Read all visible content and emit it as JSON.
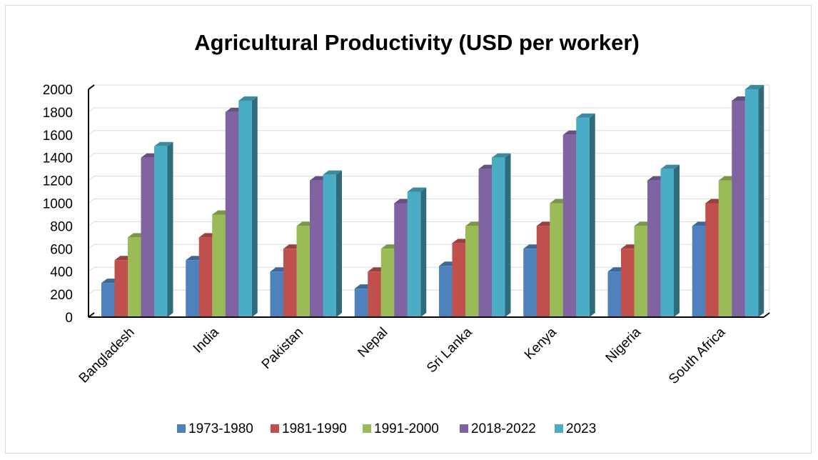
{
  "chart_data": {
    "type": "bar",
    "title": "Agricultural Productivity (USD per worker)",
    "xlabel": "",
    "ylabel": "",
    "ylim": [
      0,
      2000
    ],
    "yticks": [
      "0",
      "200",
      "400",
      "600",
      "800",
      "1000",
      "1200",
      "1400",
      "1600",
      "1800",
      "2000"
    ],
    "grid": true,
    "legend_position": "bottom",
    "categories": [
      "Bangladesh",
      "India",
      "Pakistan",
      "Nepal",
      "Sri Lanka",
      "Kenya",
      "Nigeria",
      "South Africa"
    ],
    "series": [
      {
        "name": "1973-1980",
        "color": "#4f81bd",
        "values": [
          300,
          500,
          400,
          250,
          450,
          600,
          400,
          800
        ]
      },
      {
        "name": "1981-1990",
        "color": "#c0504d",
        "values": [
          500,
          700,
          600,
          400,
          650,
          800,
          600,
          1000
        ]
      },
      {
        "name": "1991-2000",
        "color": "#9bbb59",
        "values": [
          700,
          900,
          800,
          600,
          800,
          1000,
          800,
          1200
        ]
      },
      {
        "name": "2018-2022",
        "color": "#8064a2",
        "values": [
          1400,
          1800,
          1200,
          1000,
          1300,
          1600,
          1200,
          1900
        ]
      },
      {
        "name": "2023",
        "color": "#4bacc6",
        "values": [
          1500,
          1900,
          1250,
          1100,
          1400,
          1750,
          1300,
          2000
        ]
      }
    ]
  }
}
